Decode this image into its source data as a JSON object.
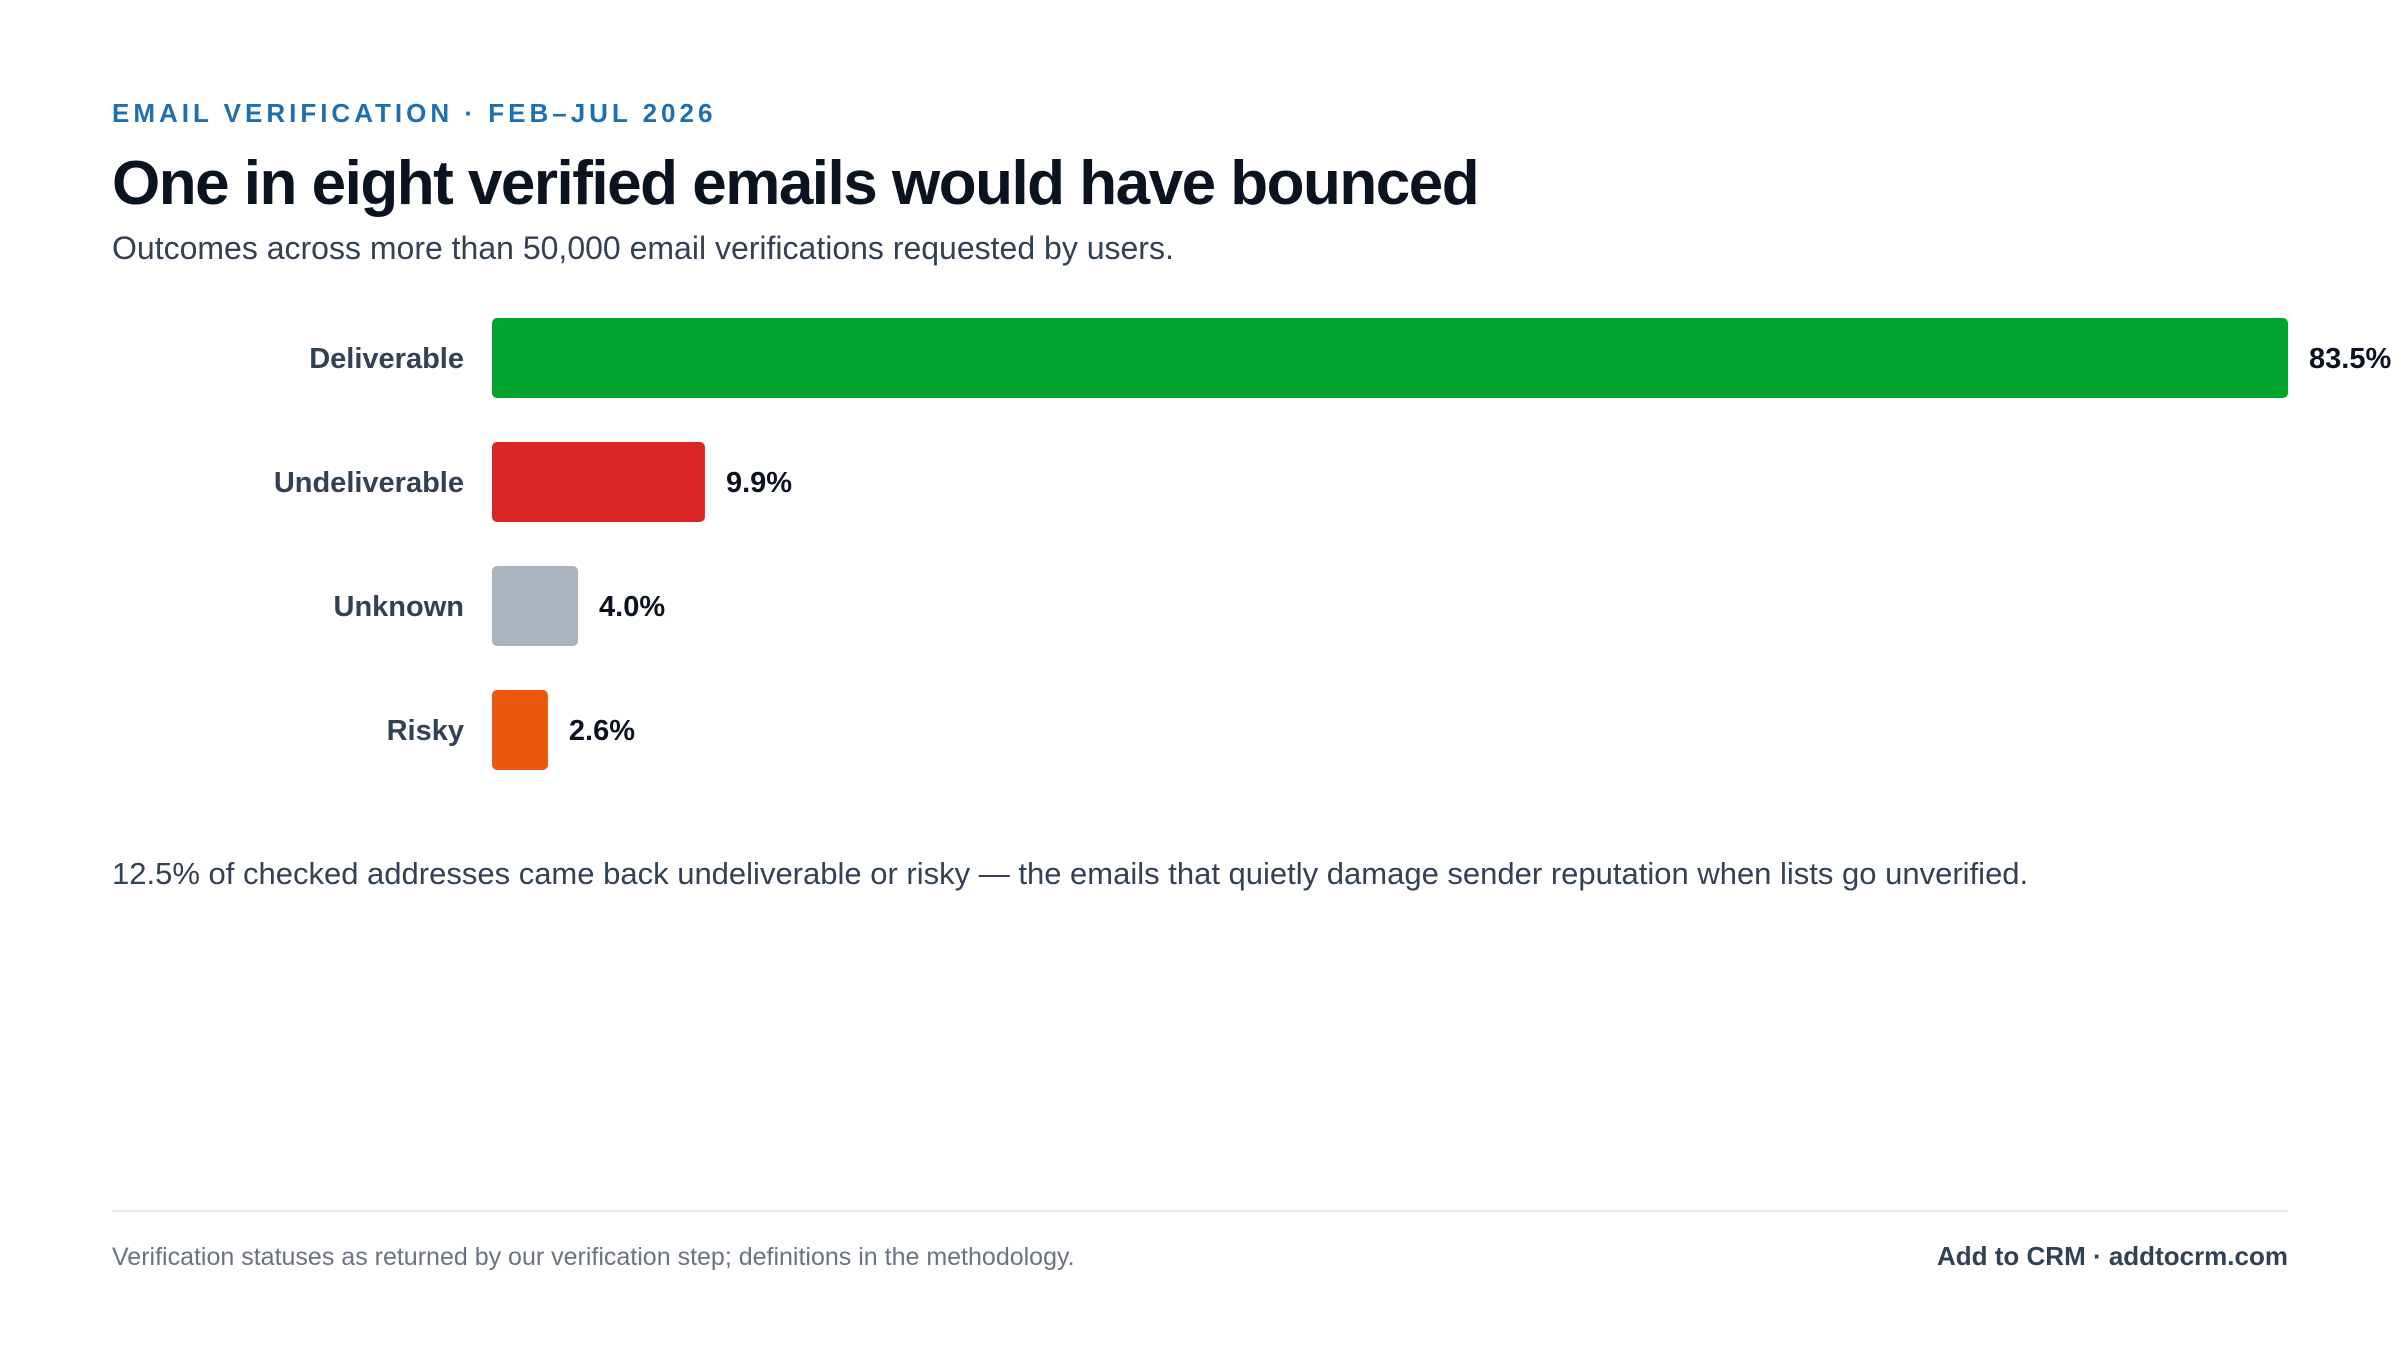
{
  "header": {
    "kicker": "EMAIL VERIFICATION · FEB–JUL 2026",
    "title": "One in eight verified emails would have bounced",
    "subtitle": "Outcomes across more than 50,000 email verifications requested by users."
  },
  "chart_data": {
    "type": "bar",
    "orientation": "horizontal",
    "categories": [
      "Deliverable",
      "Undeliverable",
      "Unknown",
      "Risky"
    ],
    "values": [
      83.5,
      9.9,
      4.0,
      2.6
    ],
    "value_labels": [
      "83.5%",
      "9.9%",
      "4.0%",
      "2.6%"
    ],
    "colors": [
      "#00a32e",
      "#dc2626",
      "#a9b4be",
      "#ea580c"
    ],
    "xlim": [
      0,
      83.5
    ],
    "grid": false,
    "legend": "none"
  },
  "note": "12.5% of checked addresses came back undeliverable or risky — the emails that quietly damage sender reputation when lists go unverified.",
  "footer": {
    "source": "Verification statuses as returned by our verification step; definitions in the methodology.",
    "brand": "Add to CRM · addtocrm.com"
  }
}
